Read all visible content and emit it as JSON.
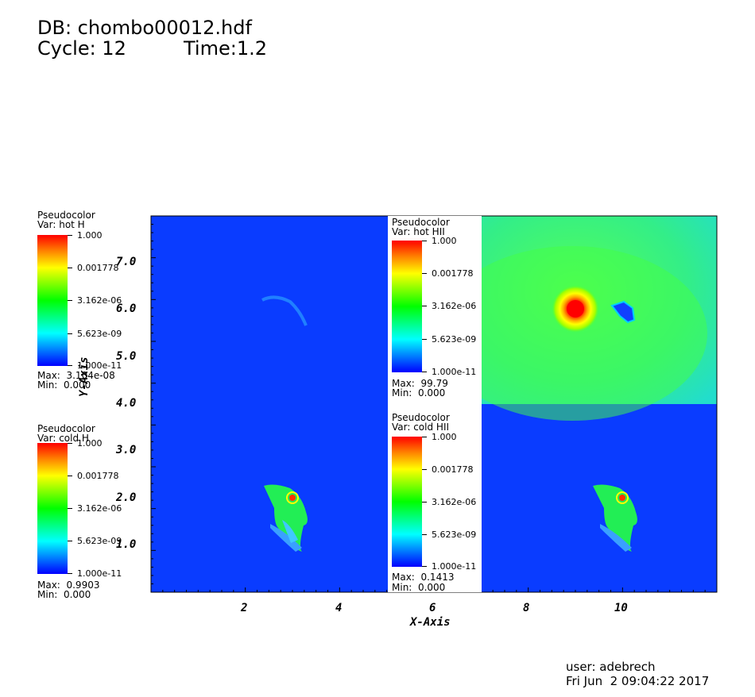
{
  "header": {
    "db": "DB: chombo00012.hdf",
    "cycle": "Cycle: 12",
    "time": "Time:1.2"
  },
  "legends": [
    {
      "id": "hot-h",
      "title": "Pseudocolor",
      "var": "Var: hot H",
      "ticks": [
        "1.000",
        "0.001778",
        "3.162e-06",
        "5.623e-09",
        "1.000e-11"
      ],
      "max": "Max:  3.104e-08",
      "min": "Min:  0.000"
    },
    {
      "id": "cold-h",
      "title": "Pseudocolor",
      "var": "Var: cold H",
      "ticks": [
        "1.000",
        "0.001778",
        "3.162e-06",
        "5.623e-09",
        "1.000e-11"
      ],
      "max": "Max:  0.9903",
      "min": "Min:  0.000"
    },
    {
      "id": "hot-hii",
      "title": "Pseudocolor",
      "var": "Var: hot HII",
      "ticks": [
        "1.000",
        "0.001778",
        "3.162e-06",
        "5.623e-09",
        "1.000e-11"
      ],
      "max": "Max:  99.79",
      "min": "Min:  0.000"
    },
    {
      "id": "cold-hii",
      "title": "Pseudocolor",
      "var": "Var: cold HII",
      "ticks": [
        "1.000",
        "0.001778",
        "3.162e-06",
        "5.623e-09",
        "1.000e-11"
      ],
      "max": "Max:  0.1413",
      "min": "Min:  0.000"
    }
  ],
  "chart_data": {
    "type": "heatmap",
    "xlabel": "X-Axis",
    "ylabel": "Y-Axis",
    "xlim": [
      0,
      12
    ],
    "ylim": [
      -1,
      8
    ],
    "x_ticks": [
      "2",
      "4",
      "6",
      "8",
      "10"
    ],
    "y_ticks": [
      "1.0",
      "2.0",
      "3.0",
      "4.0",
      "5.0",
      "6.0",
      "7.0"
    ],
    "colormap": [
      "#ff0000",
      "#ff8000",
      "#ffff00",
      "#00ff00",
      "#00ffff",
      "#0000ff"
    ],
    "scale": "log",
    "panels": [
      {
        "var": "hot H",
        "position": "top-left"
      },
      {
        "var": "hot HII",
        "position": "top-right"
      },
      {
        "var": "cold H",
        "position": "bottom-left"
      },
      {
        "var": "cold HII",
        "position": "bottom-right"
      }
    ]
  },
  "footer": {
    "user": "user: adebrech",
    "date": "Fri Jun  2 09:04:22 2017"
  }
}
